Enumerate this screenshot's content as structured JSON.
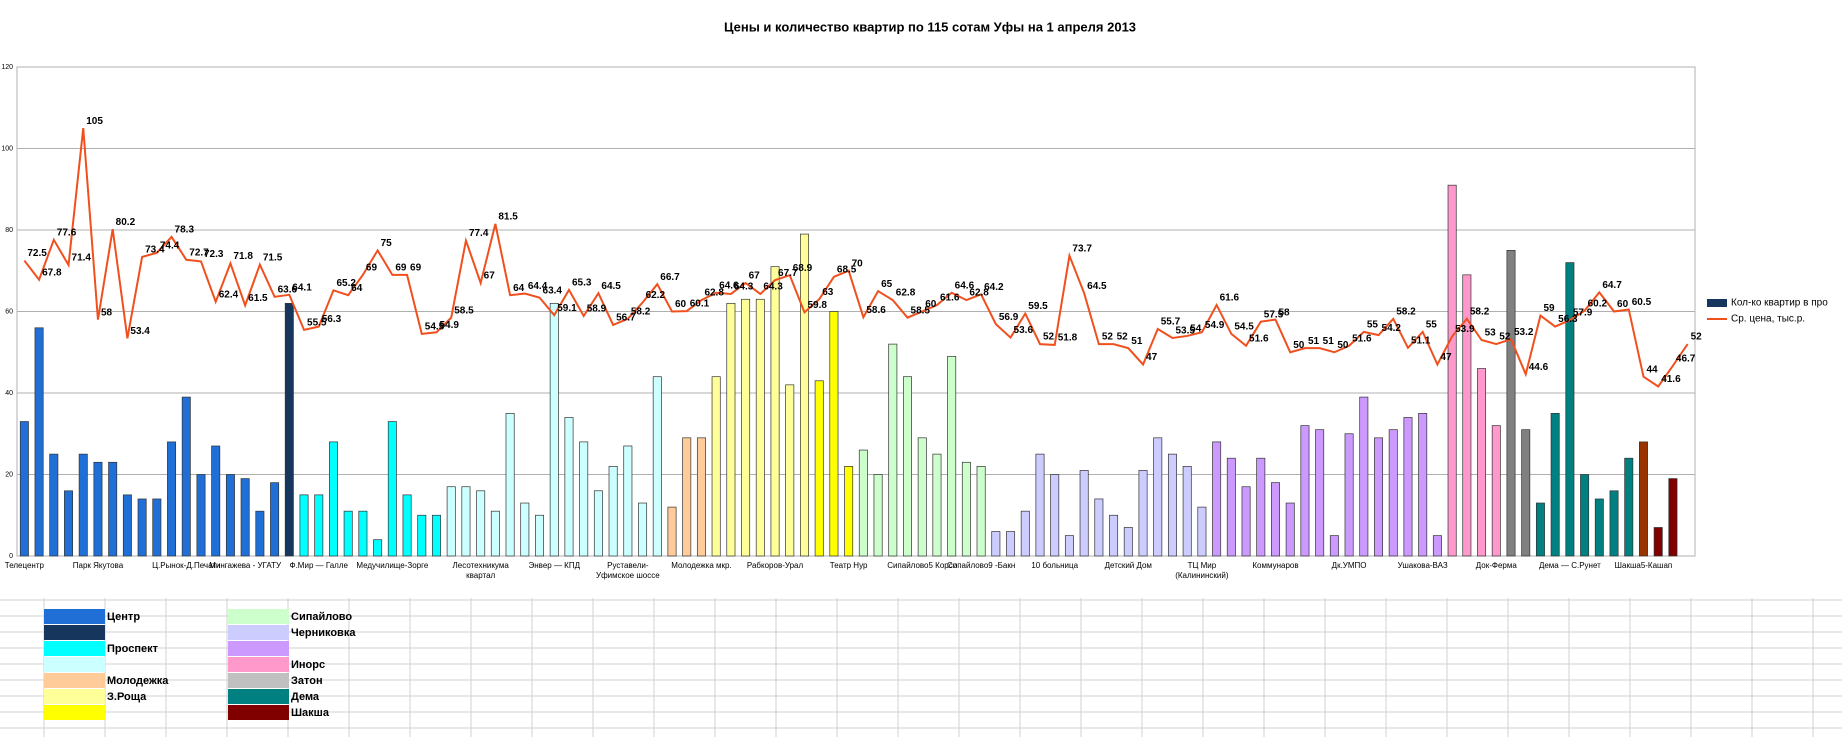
{
  "chart_data": {
    "type": "bar_line",
    "title": "Цены и количество квартир по 115 сотам Уфы на 1 апреля 2013",
    "categories": [
      "Телецентр",
      null,
      null,
      null,
      null,
      "Парк Якутова",
      null,
      null,
      null,
      null,
      null,
      "Ц.Рынок-Д.Печати",
      null,
      null,
      null,
      "Мингажева - УГАТУ",
      null,
      null,
      null,
      null,
      "Ф.Мир — Галле",
      null,
      null,
      null,
      null,
      "Медучилище-Зорге",
      null,
      null,
      null,
      null,
      null,
      "Лесотехникума квартал",
      null,
      null,
      null,
      null,
      "Энвер — КПД",
      null,
      null,
      null,
      null,
      "Руставели-Уфимское шоссе",
      null,
      null,
      null,
      null,
      "Молодежка мкр.",
      null,
      null,
      null,
      null,
      "Рабкоров-Урал",
      null,
      null,
      null,
      null,
      "Театр Нур",
      null,
      null,
      null,
      null,
      "Сипайлово5 Корсо",
      null,
      null,
      null,
      "Сипайлово9 -Бакн",
      null,
      null,
      null,
      null,
      "10 больница",
      null,
      null,
      null,
      null,
      "Детский Дом",
      null,
      null,
      null,
      null,
      "ТЦ Мир (Калининский)",
      null,
      null,
      null,
      null,
      "Коммунаров",
      null,
      null,
      null,
      null,
      "Дк.УМПО",
      null,
      null,
      null,
      null,
      "Ушакова-ВАЗ",
      null,
      null,
      null,
      null,
      "Док-Ферма",
      null,
      null,
      null,
      null,
      "Дема — С.Рунет",
      null,
      null,
      null,
      null,
      "Шакша5-Кашап",
      null,
      null,
      null
    ],
    "series": [
      {
        "name": "Кол-ко квартир в про",
        "type": "bar",
        "color": "#17365d",
        "values": [
          33,
          56,
          25,
          16,
          25,
          23,
          23,
          15,
          14,
          14,
          28,
          39,
          20,
          27,
          20,
          19,
          11,
          18,
          62,
          15,
          15,
          28,
          11,
          11,
          4,
          33,
          15,
          10,
          10,
          17,
          17,
          16,
          11,
          35,
          13,
          10,
          62,
          34,
          28,
          16,
          22,
          27,
          13,
          44,
          12,
          29,
          29,
          44,
          62,
          63,
          63,
          71,
          42,
          79,
          43,
          60,
          22,
          26,
          20,
          52,
          44,
          29,
          25,
          49,
          23,
          22,
          6,
          6,
          11,
          25,
          20,
          5,
          21,
          14,
          10,
          7,
          21,
          29,
          25,
          22,
          12,
          28,
          24,
          17,
          24,
          18,
          13,
          32,
          31,
          5,
          30,
          39,
          29,
          31,
          34,
          35,
          5,
          91,
          69,
          46,
          32,
          75,
          31,
          13,
          35,
          72,
          20,
          14,
          16,
          24,
          28,
          7,
          19,
          null
        ],
        "colors": [
          "#1f6fd6",
          "#1f6fd6",
          "#1f6fd6",
          "#1f6fd6",
          "#1f6fd6",
          "#1f6fd6",
          "#1f6fd6",
          "#1f6fd6",
          "#1f6fd6",
          "#1f6fd6",
          "#1f6fd6",
          "#1f6fd6",
          "#1f6fd6",
          "#1f6fd6",
          "#1f6fd6",
          "#1f6fd6",
          "#1f6fd6",
          "#1f6fd6",
          "#17365d",
          "#00ffff",
          "#00ffff",
          "#00ffff",
          "#00ffff",
          "#00ffff",
          "#00ffff",
          "#00ffff",
          "#00ffff",
          "#00ffff",
          "#00ffff",
          "#ccffff",
          "#ccffff",
          "#ccffff",
          "#ccffff",
          "#ccffff",
          "#ccffff",
          "#ccffff",
          "#ccffff",
          "#ccffff",
          "#ccffff",
          "#ccffff",
          "#ccffff",
          "#ccffff",
          "#ccffff",
          "#ccffff",
          "#ffcc99",
          "#ffcc99",
          "#ffcc99",
          "#ffff99",
          "#ffff99",
          "#ffff99",
          "#ffff99",
          "#ffff99",
          "#ffff99",
          "#ffff99",
          "#ffff00",
          "#ffff00",
          "#ffff00",
          "#ccffcc",
          "#ccffcc",
          "#ccffcc",
          "#ccffcc",
          "#ccffcc",
          "#ccffcc",
          "#ccffcc",
          "#ccffcc",
          "#ccffcc",
          "#ccccff",
          "#ccccff",
          "#ccccff",
          "#ccccff",
          "#ccccff",
          "#ccccff",
          "#ccccff",
          "#ccccff",
          "#ccccff",
          "#ccccff",
          "#ccccff",
          "#ccccff",
          "#ccccff",
          "#ccccff",
          "#ccccff",
          "#cc99ff",
          "#cc99ff",
          "#cc99ff",
          "#cc99ff",
          "#cc99ff",
          "#cc99ff",
          "#cc99ff",
          "#cc99ff",
          "#cc99ff",
          "#cc99ff",
          "#cc99ff",
          "#cc99ff",
          "#cc99ff",
          "#cc99ff",
          "#cc99ff",
          "#cc99ff",
          "#ff99cc",
          "#ff99cc",
          "#ff99cc",
          "#ff99cc",
          "#808080",
          "#808080",
          "#008080",
          "#008080",
          "#008080",
          "#008080",
          "#008080",
          "#008080",
          "#008080",
          "#993300",
          "#800000",
          "#800000",
          null
        ]
      },
      {
        "name": "Ср. цена, тыс.р.",
        "type": "line",
        "color": "#f0501e",
        "values": [
          72.5,
          67.8,
          77.6,
          71.4,
          105,
          58,
          80.2,
          53.4,
          73.4,
          74.4,
          78.3,
          72.7,
          72.3,
          62.4,
          71.8,
          61.5,
          71.5,
          63.6,
          64.1,
          55.5,
          56.3,
          65.2,
          64,
          69,
          75,
          69,
          69,
          54.5,
          54.9,
          58.5,
          77.4,
          67,
          81.5,
          64,
          64.4,
          63.4,
          59.1,
          65.3,
          58.9,
          64.5,
          56.7,
          58.2,
          62.2,
          66.7,
          60,
          60.1,
          62.8,
          64.6,
          64.3,
          67,
          64.3,
          67.7,
          68.9,
          59.8,
          63,
          68.5,
          70,
          58.6,
          65,
          62.8,
          58.5,
          60,
          61.6,
          64.6,
          62.8,
          64.2,
          56.9,
          53.6,
          59.5,
          52,
          51.8,
          73.7,
          64.5,
          52,
          52,
          51,
          47,
          55.7,
          53.5,
          54,
          54.9,
          61.6,
          54.5,
          51.6,
          57.5,
          58,
          50,
          51,
          51,
          50,
          51.6,
          55,
          54.2,
          58.2,
          51.1,
          55,
          47,
          53.9,
          58.2,
          53,
          52,
          53.2,
          44.6,
          59,
          56.3,
          57.9,
          60.2,
          64.7,
          60,
          60.5,
          44,
          41.6,
          46.7,
          52
        ]
      }
    ],
    "ylim": [
      0,
      120
    ],
    "yticks": [
      0,
      20,
      40,
      60,
      80,
      100,
      120
    ],
    "grid": true,
    "legend": "right",
    "district_legend": [
      {
        "name": "Центр",
        "color": "#1f6fd6"
      },
      {
        "name": null,
        "color": "#17365d"
      },
      {
        "name": "Проспект",
        "color": "#00ffff"
      },
      {
        "name": null,
        "color": "#ccffff"
      },
      {
        "name": "Молодежка",
        "color": "#ffcc99"
      },
      {
        "name": "З.Роща",
        "color": "#ffff99"
      },
      {
        "name": null,
        "color": "#ffff00"
      },
      {
        "name": "Сипайлово",
        "color": "#ccffcc"
      },
      {
        "name": "Черниковка",
        "color": "#ccccff"
      },
      {
        "name": null,
        "color": "#cc99ff"
      },
      {
        "name": "Инорс",
        "color": "#ff99cc"
      },
      {
        "name": "Затон",
        "color": "#c0c0c0"
      },
      {
        "name": "Дема",
        "color": "#008080"
      },
      {
        "name": "Шакша",
        "color": "#800000"
      }
    ]
  }
}
